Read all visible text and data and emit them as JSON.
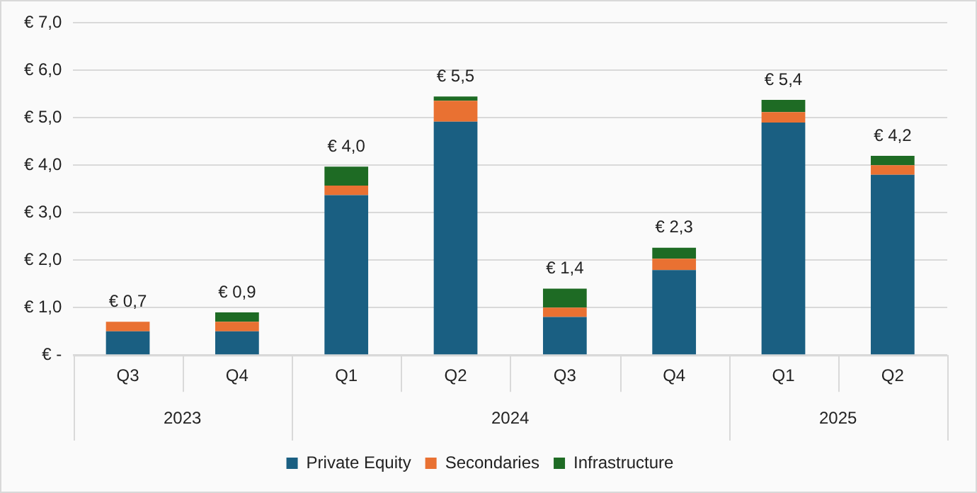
{
  "chart_data": {
    "type": "bar",
    "stacked": true,
    "categories": [
      "Q3",
      "Q4",
      "Q1",
      "Q2",
      "Q3",
      "Q4",
      "Q1",
      "Q2"
    ],
    "series": [
      {
        "name": "Private Equity",
        "color": "#1a5f82",
        "values": [
          0.5,
          0.5,
          3.37,
          4.92,
          0.8,
          1.79,
          4.9,
          3.8
        ]
      },
      {
        "name": "Secondaries",
        "color": "#e97132",
        "values": [
          0.2,
          0.2,
          0.2,
          0.44,
          0.2,
          0.24,
          0.22,
          0.2
        ]
      },
      {
        "name": "Infrastructure",
        "color": "#1e6b24",
        "values": [
          0,
          0.2,
          0.4,
          0.09,
          0.4,
          0.23,
          0.26,
          0.2
        ]
      }
    ],
    "totals": [
      "€ 0,7",
      "€ 0,9",
      "€ 4,0",
      "€ 5,5",
      "€ 1,4",
      "€ 2,3",
      "€ 5,4",
      "€ 4,2"
    ],
    "annotations": [
      "2023",
      "2024",
      "2025"
    ],
    "ylim": [
      0,
      7
    ],
    "yticks": [
      {
        "value": 0,
        "label": "€ -"
      },
      {
        "value": 1,
        "label": "€ 1,0"
      },
      {
        "value": 2,
        "label": "€ 2,0"
      },
      {
        "value": 3,
        "label": "€ 3,0"
      },
      {
        "value": 4,
        "label": "€ 4,0"
      },
      {
        "value": 5,
        "label": "€ 5,0"
      },
      {
        "value": 6,
        "label": "€ 6,0"
      },
      {
        "value": 7,
        "label": "€ 7,0"
      }
    ],
    "grid": "y",
    "legend": "bottom"
  }
}
